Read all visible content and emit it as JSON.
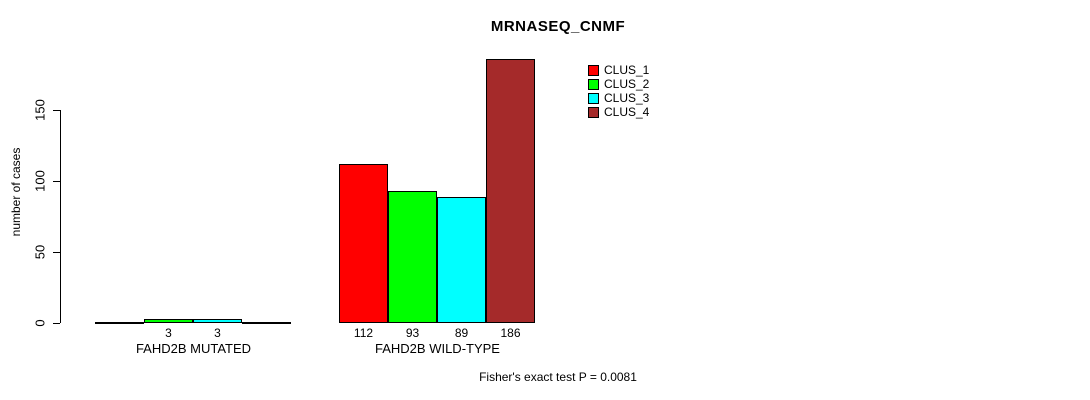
{
  "title": "MRNASEQ_CNMF",
  "y_axis": {
    "label": "number of cases",
    "ticks": [
      0,
      50,
      100,
      150
    ]
  },
  "footnote": "Fisher's exact test P = 0.0081",
  "legend": {
    "items": [
      {
        "label": "CLUS_1",
        "color": "#FF0000"
      },
      {
        "label": "CLUS_2",
        "color": "#00FF00"
      },
      {
        "label": "CLUS_3",
        "color": "#00FFFF"
      },
      {
        "label": "CLUS_4",
        "color": "#A52A2A"
      }
    ]
  },
  "chart_data": {
    "type": "bar",
    "title": "MRNASEQ_CNMF",
    "xlabel": "",
    "ylabel": "number of cases",
    "ylim": [
      0,
      190
    ],
    "yticks": [
      0,
      50,
      100,
      150
    ],
    "grid": false,
    "legend_position": "upper-right-inside",
    "categories": [
      "FAHD2B MUTATED",
      "FAHD2B WILD-TYPE"
    ],
    "series": [
      {
        "name": "CLUS_1",
        "color": "#FF0000",
        "values": [
          0,
          112
        ]
      },
      {
        "name": "CLUS_2",
        "color": "#00FF00",
        "values": [
          3,
          93
        ]
      },
      {
        "name": "CLUS_3",
        "color": "#00FFFF",
        "values": [
          3,
          89
        ]
      },
      {
        "name": "CLUS_4",
        "color": "#A52A2A",
        "values": [
          0,
          186
        ]
      }
    ],
    "bar_value_labels": [
      [
        "",
        "3",
        "3",
        ""
      ],
      [
        "112",
        "93",
        "89",
        "186"
      ]
    ],
    "annotation": "Fisher's exact test P = 0.0081"
  }
}
